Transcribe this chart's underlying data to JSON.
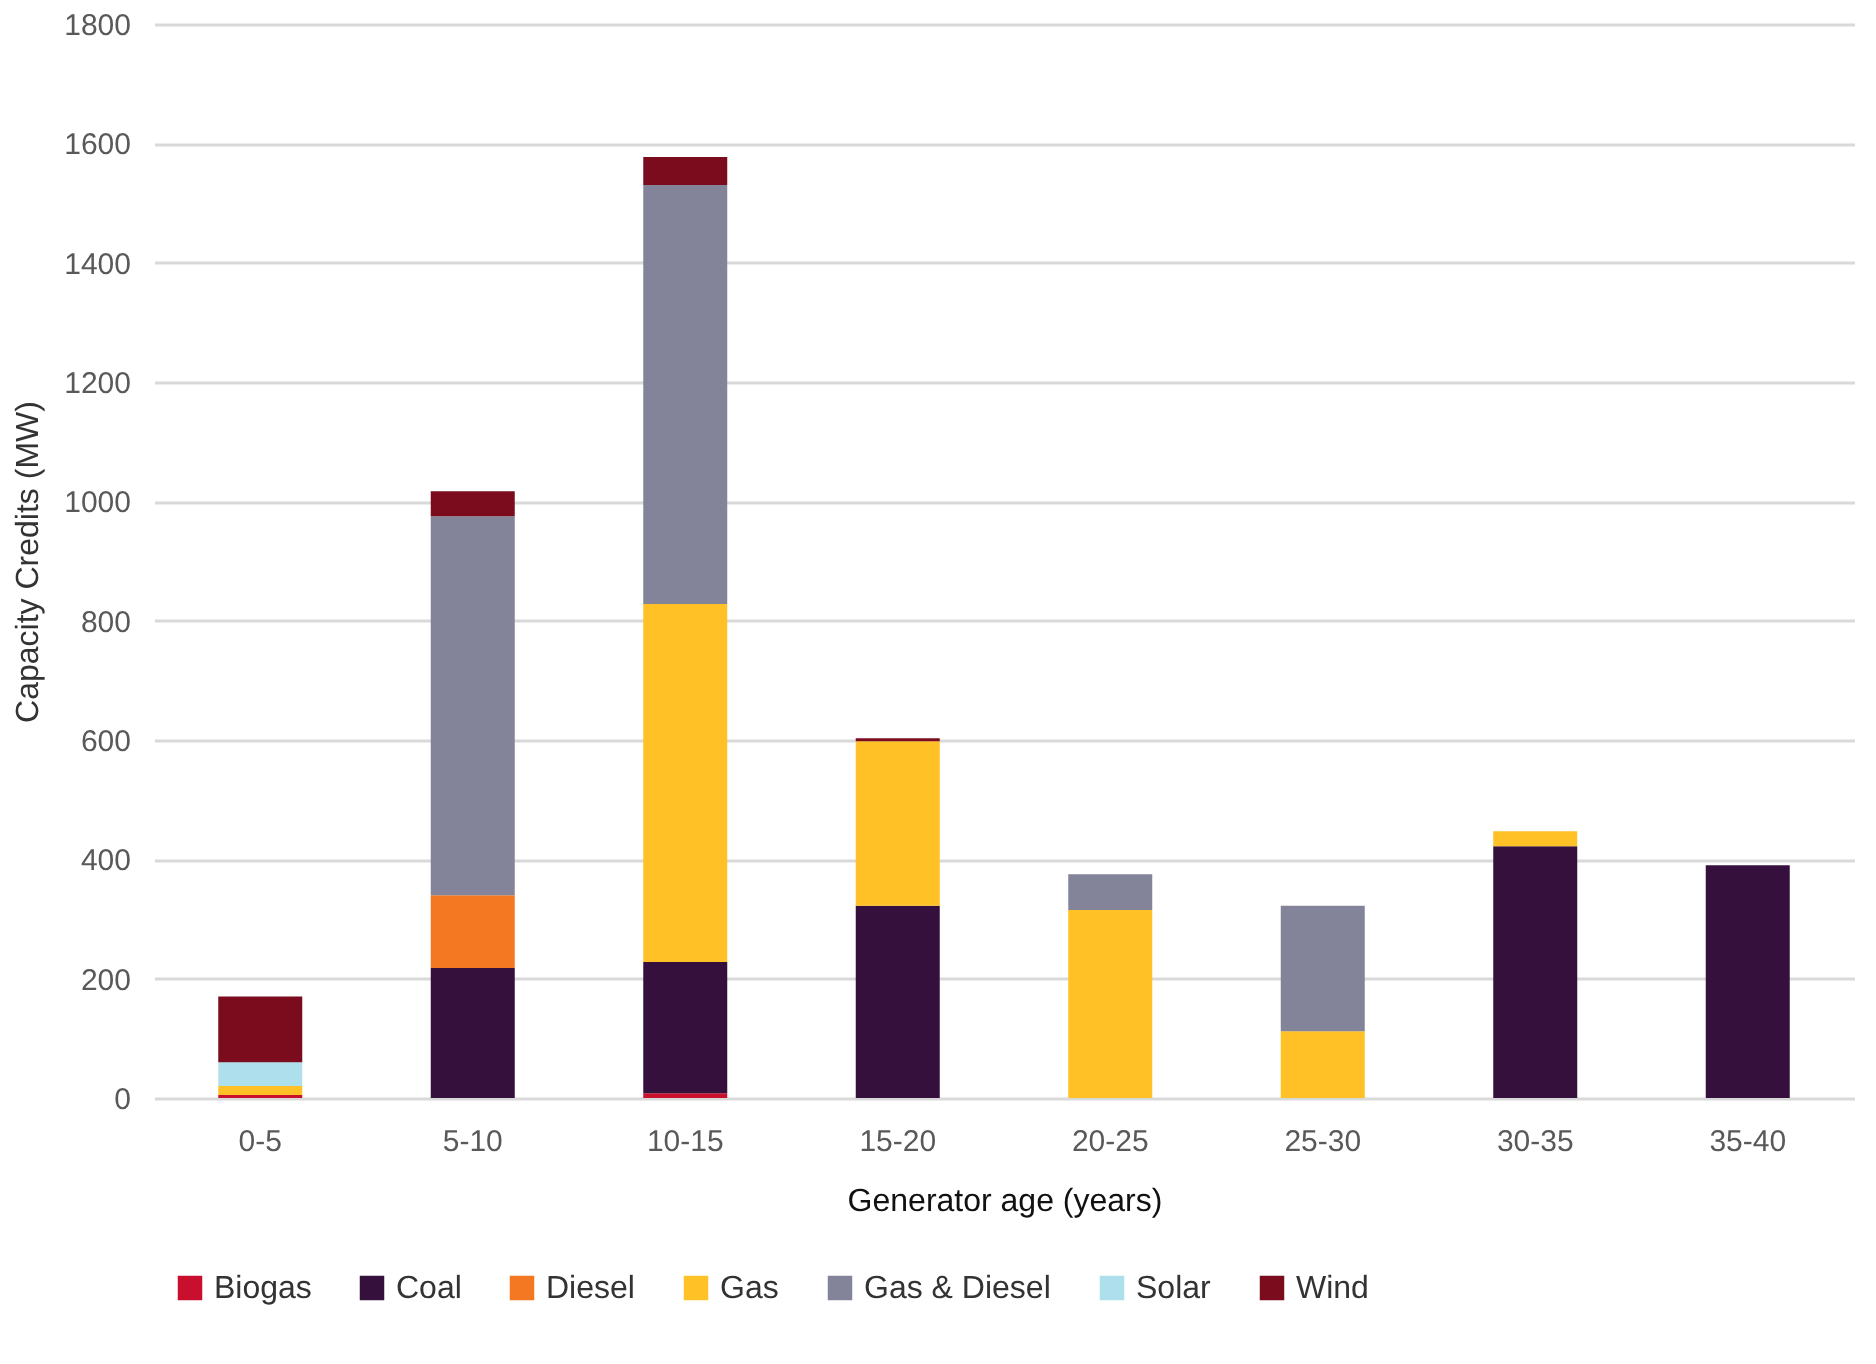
{
  "chart_data": {
    "type": "bar",
    "stacked": true,
    "xlabel": "Generator age (years)",
    "ylabel": "Capacity Credits (MW)",
    "categories": [
      "0-5",
      "5-10",
      "10-15",
      "15-20",
      "20-25",
      "25-30",
      "30-35",
      "35-40"
    ],
    "series": [
      {
        "name": "Biogas",
        "color": "#c8102e",
        "values": [
          5,
          0,
          8,
          0,
          0,
          0,
          0,
          0
        ]
      },
      {
        "name": "Coal",
        "color": "#36103c",
        "values": [
          0,
          218,
          220,
          322,
          0,
          0,
          422,
          390
        ]
      },
      {
        "name": "Diesel",
        "color": "#f47721",
        "values": [
          0,
          122,
          0,
          0,
          0,
          0,
          0,
          0
        ]
      },
      {
        "name": "Gas",
        "color": "#ffc125",
        "values": [
          15,
          0,
          600,
          276,
          315,
          112,
          25,
          0
        ]
      },
      {
        "name": "Gas & Diesel",
        "color": "#838499",
        "values": [
          0,
          635,
          702,
          0,
          60,
          210,
          0,
          0
        ]
      },
      {
        "name": "Solar",
        "color": "#addfec",
        "values": [
          40,
          0,
          0,
          0,
          0,
          0,
          0,
          0
        ]
      },
      {
        "name": "Wind",
        "color": "#7a0c1e",
        "values": [
          110,
          42,
          47,
          5,
          0,
          0,
          0,
          0
        ]
      }
    ],
    "ylim": [
      0,
      1800
    ],
    "yticks": [
      0,
      200,
      400,
      600,
      800,
      1000,
      1200,
      1400,
      1600,
      1800
    ],
    "grid": "y",
    "legend": "bottom"
  }
}
